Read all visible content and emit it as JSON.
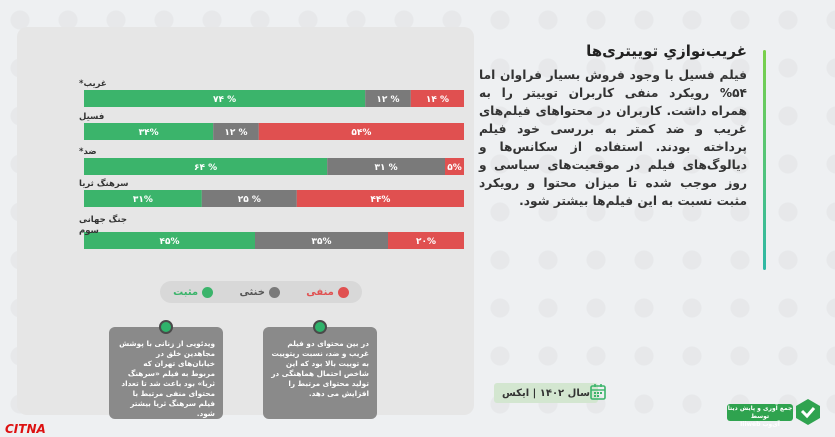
{
  "chart_data": {
    "type": "bar",
    "stacked": true,
    "orientation": "horizontal",
    "categories": [
      "غریب*",
      "فسیل",
      "ضد*",
      "سرهنگ ثریا",
      "جنگ جهانی سوم"
    ],
    "series": [
      {
        "name": "مثبت",
        "color": "#3bb46b",
        "values": [
          74,
          34,
          64,
          31,
          45
        ],
        "labels": [
          "۷۴ %",
          "۳۴%",
          "۶۴ %",
          "۳۱%",
          "۴۵%"
        ]
      },
      {
        "name": "خنثی",
        "color": "#7a7a7a",
        "values": [
          12,
          12,
          31,
          25,
          35
        ],
        "labels": [
          "۱۲ %",
          "۱۲ %",
          "۳۱ %",
          "۲۵ %",
          "۳۵%"
        ]
      },
      {
        "name": "منفی",
        "color": "#e05050",
        "values": [
          14,
          54,
          5,
          44,
          20
        ],
        "labels": [
          "۱۴ %",
          "۵۴%",
          "۵%",
          "۴۴%",
          "۲۰%"
        ]
      }
    ],
    "xlim": [
      0,
      100
    ]
  },
  "legend": {
    "positive": "مثبت",
    "neutral": "خنثی",
    "negative": "منفی"
  },
  "notes": [
    {
      "text": "در بین محتوای دو فیلم غریب و ضد، نسبت ریتوییت به توییت بالا بود که این شاخص احتمال هماهنگی در تولید محتوای مرتبط را افزایش می دهد."
    },
    {
      "text": "ویدئویی از زنانی با پوشش مجاهدین خلق در خیابان‌های تهران که مربوط به فیلم «سرهنگ ثریا» بود باعث شد تا تعداد محتوای منفی مرتبط با فیلم سرهنگ ثریا بیشتر شود."
    }
  ],
  "title": "غریب‌نوازیِ توییتری‌ها",
  "body": "فیلم فسیل با وجود فروش بسیار فراوان اما ۵۴% رویکرد منفی کاربران توییتر را به همراه داشت. کاربران در محتواهای فیلم‌های غریب و ضد کمتر به بررسی خود فیلم پرداخته بودند. استفاده از سکانس‌ها و دیالوگ‌های فیلم در موقعیت‌های سیاسی و روز موجب شده تا میزان محتوا و رویکرد مثبت نسبت به این فیلم‌ها بیشتر شود.",
  "year_label": "سال ۱۴۰۲ | ایکس",
  "logo_text": "جمع آوری و پایش دیتا توسط",
  "logo_brand": "آی‌وب  Iiiweb",
  "watermark": "CITNA"
}
